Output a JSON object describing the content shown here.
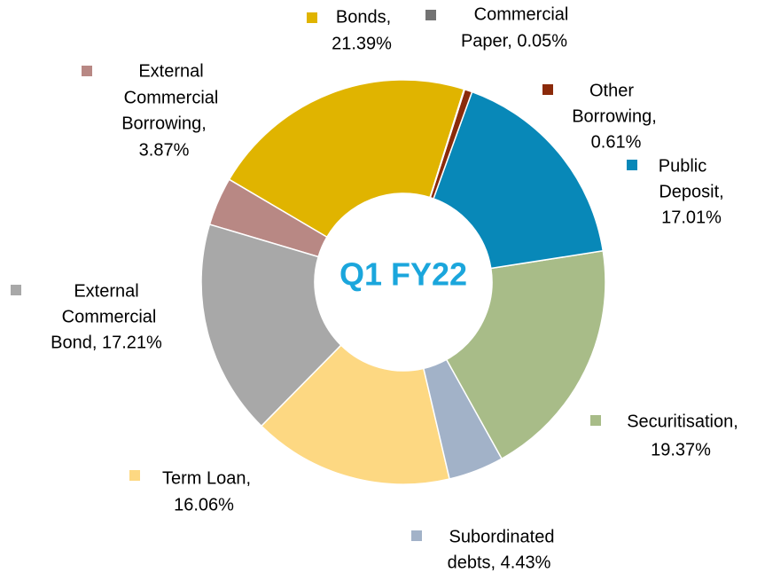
{
  "chart_data": {
    "type": "donut",
    "center_label": "Q1 FY22",
    "labels": [
      [
        "Commercial",
        "Paper, 0.05%"
      ],
      [
        "Other",
        "Borrowing,",
        "0.61%"
      ],
      [
        "Public",
        "Deposit,",
        "17.01%"
      ],
      [
        "Securitisation,",
        "19.37%"
      ],
      [
        "Subordinated",
        "debts, 4.43%"
      ],
      [
        "Term  Loan,",
        "16.06%"
      ],
      [
        "External",
        "Commercial",
        "Bond, 17.21%"
      ],
      [
        "External",
        "Commercial",
        "Borrowing,",
        "3.87%"
      ],
      [
        "Bonds,",
        "21.39%"
      ]
    ],
    "values": [
      0.05,
      0.61,
      17.01,
      19.37,
      4.43,
      16.06,
      17.21,
      3.87,
      21.39
    ],
    "colors": [
      "#737373",
      "#8b2a0a",
      "#0888b8",
      "#a8bc88",
      "#a2b2c8",
      "#fdd882",
      "#a8a8a8",
      "#b88884",
      "#e0b400"
    ]
  }
}
